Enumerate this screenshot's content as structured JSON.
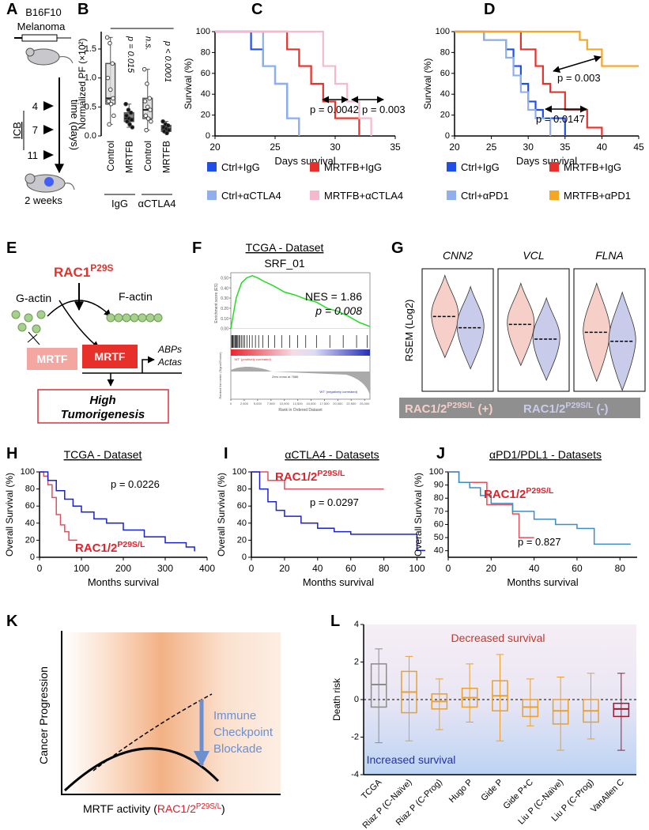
{
  "panels": {
    "A": {
      "label": "A",
      "lines": [
        "B16F10",
        "Melanoma"
      ],
      "timeline": [
        4,
        7,
        11
      ],
      "treatment": "ICB",
      "axis": "time (days)",
      "endpoint": "2 weeks"
    },
    "E": {
      "label": "E",
      "driver": "RAC1",
      "driver_sup": "P29S",
      "g_actin": "G-actin",
      "f_actin": "F-actin",
      "mrtf_inactive": "MRTF",
      "mrtf_active": "MRTF",
      "targets": [
        "ABPs",
        "Actas"
      ],
      "outcome": [
        "High",
        "Tumorigenesis"
      ]
    },
    "K": {
      "label": "K",
      "y_label": "Cancer Progression",
      "x_label": "MRTF activity (",
      "x_label_gene": "RAC1/2",
      "x_label_sup": "P29S/L",
      "x_label_end": ")",
      "treatment": [
        "Immune",
        "Checkpoint",
        "Blockade"
      ]
    }
  },
  "chart_data": [
    {
      "type": "box",
      "label": "B",
      "y_label": "Normalized PF (×10²)",
      "categories": [
        "Control",
        "MRTFB",
        "Control",
        "MRTFB"
      ],
      "groups": [
        "IgG",
        "αCTLA4"
      ],
      "colors": [
        "#d9d9d9",
        "#6b6b6b",
        "#d9d9d9",
        "#6b6b6b"
      ],
      "stats": [
        {
          "min": 0.2,
          "q1": 0.55,
          "median": 0.65,
          "q3": 1.25,
          "max": 1.7
        },
        {
          "min": 0.15,
          "q1": 0.25,
          "median": 0.3,
          "q3": 0.4,
          "max": 0.55
        },
        {
          "min": 0.1,
          "q1": 0.3,
          "median": 0.45,
          "q3": 0.65,
          "max": 1.15
        },
        {
          "min": 0.05,
          "q1": 0.08,
          "median": 0.12,
          "q3": 0.18,
          "max": 0.25
        }
      ],
      "points": [
        [
          1.7,
          1.6,
          1.25,
          1.0,
          0.8,
          0.65,
          0.6,
          0.55,
          0.35,
          0.2
        ],
        [
          0.55,
          0.45,
          0.4,
          0.35,
          0.3,
          0.28,
          0.25,
          0.2,
          0.15
        ],
        [
          1.15,
          0.9,
          0.65,
          0.6,
          0.5,
          0.45,
          0.35,
          0.3,
          0.25,
          0.1
        ],
        [
          0.25,
          0.2,
          0.18,
          0.15,
          0.12,
          0.1,
          0.08,
          0.05
        ]
      ],
      "ylim": [
        0,
        1.8
      ],
      "yticks": [
        {
          "value": 0,
          "label": "0.0"
        },
        0.5,
        {
          "value": 1,
          "label": "1.0"
        },
        1.5
      ],
      "annotations": [
        "p = 0.015",
        "n.s.",
        "p < 0.0001"
      ]
    },
    {
      "type": "km",
      "label": "C",
      "x_label": "Days survival",
      "y_label": "Survival (%)",
      "xlim": [
        20,
        35
      ],
      "xticks": [
        20,
        25,
        30,
        35
      ],
      "ylim": [
        0,
        100
      ],
      "yticks": [
        0,
        20,
        40,
        60,
        80,
        100
      ],
      "series": [
        {
          "name": "Ctrl+IgG",
          "color": "#1f4fe8",
          "x": [
            20,
            23,
            24,
            25,
            26,
            27
          ],
          "values": [
            100,
            83,
            67,
            50,
            17,
            0
          ]
        },
        {
          "name": "MRTFB+IgG",
          "color": "#e8302a",
          "x": [
            20,
            26,
            27,
            28,
            29,
            30,
            32
          ],
          "values": [
            100,
            83,
            67,
            50,
            33,
            17,
            0
          ]
        },
        {
          "name": "Ctrl+αCTLA4",
          "color": "#8fb0ea",
          "x": [
            20,
            24,
            25,
            26,
            27
          ],
          "values": [
            100,
            67,
            50,
            17,
            0
          ]
        },
        {
          "name": "MRTFB+αCTLA4",
          "color": "#f4b8cf",
          "x": [
            20,
            29,
            30,
            31,
            32,
            33
          ],
          "values": [
            100,
            67,
            50,
            33,
            17,
            0
          ]
        }
      ],
      "annotations": [
        "p = 0.0042",
        "p = 0.003"
      ]
    },
    {
      "type": "km",
      "label": "D",
      "x_label": "Days survival",
      "y_label": "Survival (%)",
      "xlim": [
        20,
        45
      ],
      "xticks": [
        20,
        25,
        30,
        35,
        40,
        45
      ],
      "ylim": [
        0,
        100
      ],
      "yticks": [
        0,
        20,
        40,
        60,
        80,
        100
      ],
      "series": [
        {
          "name": "Ctrl+IgG",
          "color": "#1f4fe8",
          "x": [
            20,
            24,
            27,
            28,
            29,
            30,
            31,
            32,
            35
          ],
          "values": [
            100,
            92,
            83,
            67,
            50,
            33,
            25,
            17,
            0
          ]
        },
        {
          "name": "MRTFB+IgG",
          "color": "#e8302a",
          "x": [
            20,
            29,
            31,
            32,
            33,
            35,
            38,
            40
          ],
          "values": [
            100,
            83,
            67,
            50,
            42,
            25,
            8,
            0
          ]
        },
        {
          "name": "Ctrl+αPD1",
          "color": "#8fb0ea",
          "x": [
            20,
            24,
            27,
            28,
            29,
            30,
            31,
            33
          ],
          "values": [
            100,
            92,
            75,
            58,
            42,
            25,
            17,
            0
          ]
        },
        {
          "name": "MRTFB+αPD1",
          "color": "#f5a623",
          "x": [
            20,
            37,
            38,
            40,
            45
          ],
          "values": [
            100,
            92,
            83,
            67,
            67
          ]
        }
      ],
      "annotations": [
        "p = 0.003",
        "p = 0.0147"
      ]
    },
    {
      "type": "gsea",
      "label": "F",
      "title": "TCGA - Dataset",
      "subtitle": "SRF_01",
      "annotations": [
        "NES = 1.86",
        "p = 0.008"
      ],
      "y_label": "Enrichment score (ES)",
      "y2_label": "Ranked list metric (Signal2Noise)",
      "x_label": "Rank in Ordered Dataset",
      "positive_label": "'WT' (positively correlated)",
      "negative_label": "'WT' (negatively correlated)",
      "zero_cross": "Zero cross at 7686",
      "color": "#22dd22",
      "x": [
        0,
        1000,
        2000,
        3000,
        4000,
        5000,
        6000,
        8000,
        10000,
        12000,
        14000,
        16000,
        18000,
        20000,
        22000,
        24000,
        26000
      ],
      "values": [
        0,
        0.3,
        0.45,
        0.5,
        0.52,
        0.5,
        0.47,
        0.42,
        0.36,
        0.33,
        0.29,
        0.26,
        0.2,
        0.17,
        0.12,
        0.06,
        0.02
      ],
      "hits": [
        150,
        300,
        420,
        600,
        800,
        950,
        1100,
        1300,
        1500,
        1700,
        2000,
        2300,
        2600,
        3000,
        3500,
        4000,
        4600,
        5200,
        6000,
        7000,
        8200,
        9500,
        11000,
        12500,
        14000,
        16000,
        18500,
        21000,
        23500,
        25500
      ],
      "xlim": [
        0,
        26000
      ],
      "xticks": [
        0,
        {
          "value": 2500,
          "label": "2,500"
        },
        {
          "value": 5000,
          "label": "5,000"
        },
        {
          "value": 7500,
          "label": "7,500"
        },
        {
          "value": 10000,
          "label": "10,000"
        },
        {
          "value": 12500,
          "label": "12,500"
        },
        {
          "value": 15000,
          "label": "15,000"
        },
        {
          "value": 17500,
          "label": "17,500"
        },
        {
          "value": 20000,
          "label": "20,000"
        },
        {
          "value": 22500,
          "label": "22,500"
        },
        {
          "value": 25000,
          "label": "25,000"
        }
      ],
      "ylim": [
        -0.05,
        0.55
      ],
      "yticks": [
        {
          "value": 0,
          "label": "0.00"
        },
        {
          "value": 0.1,
          "label": "0.10"
        },
        {
          "value": 0.2,
          "label": "0.20"
        },
        {
          "value": 0.3,
          "label": "0.30"
        },
        {
          "value": 0.4,
          "label": "0.40"
        },
        {
          "value": 0.5,
          "label": "0.50"
        }
      ]
    },
    {
      "type": "violin",
      "label": "G",
      "y_label": "RSEM (Log2)",
      "categories": [
        "CNN2",
        "VCL",
        "FLNA"
      ],
      "ylim": [
        0,
        1
      ],
      "series": [
        {
          "name": "RAC1/2",
          "name_sup": "P29S/L",
          "name_suffix": " (+)",
          "color": "#f7cfc9",
          "values": [
            0.62,
            0.55,
            0.48
          ]
        },
        {
          "name": "RAC1/2",
          "name_sup": "P29S/L",
          "name_suffix": " (-)",
          "color": "#c9cbea",
          "values": [
            0.52,
            0.42,
            0.4
          ]
        }
      ]
    },
    {
      "type": "km",
      "label": "H",
      "title": "TCGA - Dataset",
      "x_label": "Months survival",
      "y_label": "Overall Survival (%)",
      "xlim": [
        0,
        400
      ],
      "xticks": [
        0,
        100,
        200,
        300,
        400
      ],
      "ylim": [
        0,
        100
      ],
      "yticks": [
        0,
        20,
        40,
        60,
        80,
        100
      ],
      "series": [
        {
          "name": "RAC1/2",
          "name_sup": "P29S/L",
          "color": "#e0505a",
          "x": [
            0,
            10,
            20,
            30,
            40,
            50,
            60,
            70,
            90
          ],
          "values": [
            100,
            95,
            85,
            70,
            50,
            38,
            30,
            20,
            20
          ]
        },
        {
          "color": "#1a22d0",
          "x": [
            0,
            20,
            40,
            60,
            80,
            100,
            130,
            160,
            200,
            250,
            300,
            350,
            370
          ],
          "values": [
            100,
            90,
            78,
            68,
            60,
            53,
            45,
            40,
            32,
            24,
            17,
            12,
            7
          ]
        }
      ],
      "annotations": [
        "p = 0.0226"
      ]
    },
    {
      "type": "km",
      "label": "I",
      "title": "αCTLA4 - Datasets",
      "x_label": "Months survival",
      "y_label": "Overall Survival (%)",
      "xlim": [
        0,
        105
      ],
      "xticks": [
        0,
        20,
        40,
        60,
        80,
        100
      ],
      "ylim": [
        0,
        100
      ],
      "yticks": [
        0,
        20,
        40,
        60,
        80,
        100
      ],
      "series": [
        {
          "name": "RAC1/2",
          "name_sup": "P29S/L",
          "color": "#e0505a",
          "x": [
            0,
            10,
            20,
            40,
            60,
            80
          ],
          "values": [
            100,
            90,
            80,
            80,
            80,
            80
          ]
        },
        {
          "color": "#1a22d0",
          "x": [
            0,
            5,
            10,
            15,
            20,
            30,
            40,
            50,
            60,
            70,
            95,
            100,
            105
          ],
          "values": [
            100,
            80,
            65,
            55,
            48,
            40,
            34,
            30,
            27,
            27,
            27,
            8,
            8
          ]
        }
      ],
      "annotations": [
        "p = 0.0297"
      ]
    },
    {
      "type": "km",
      "label": "J",
      "title": "αPD1/PDL1 - Datasets",
      "x_label": "Months survival",
      "y_label": "Overall Survival (%)",
      "xlim": [
        0,
        88
      ],
      "xticks": [
        0,
        20,
        40,
        60,
        80
      ],
      "ylim": [
        35,
        100
      ],
      "yticks": [
        40,
        50,
        60,
        70,
        80,
        90,
        100
      ],
      "series": [
        {
          "name": "RAC1/2",
          "name_sup": "P29S/L",
          "color": "#e0505a",
          "x": [
            0,
            5,
            10,
            18,
            30,
            33,
            40
          ],
          "values": [
            100,
            92,
            92,
            75,
            68,
            50,
            50
          ]
        },
        {
          "color": "#3b8ec4",
          "x": [
            0,
            5,
            10,
            15,
            20,
            30,
            40,
            50,
            60,
            68,
            85
          ],
          "values": [
            100,
            92,
            88,
            82,
            76,
            70,
            64,
            60,
            57,
            45,
            45
          ]
        }
      ],
      "annotations": [
        "p = 0.827"
      ]
    },
    {
      "type": "box",
      "label": "L",
      "y_label": "Death risk",
      "categories": [
        "TCGA",
        "Riaz P (C-Naïve)",
        "Riaz P (C-Prog)",
        "Hugo P",
        "Gide P",
        "Gide P+C",
        "Liu P (C-Naïve)",
        "Liu P (C-Prog)",
        "VanAllen C"
      ],
      "colors": [
        "#8c8c8c",
        "#e8a030",
        "#e8a030",
        "#e8a030",
        "#e8a030",
        "#e8a030",
        "#e8a030",
        "#e8a030",
        "#9b1b30"
      ],
      "stats": [
        {
          "min": -2.3,
          "q1": -0.4,
          "median": 0.8,
          "q3": 1.9,
          "max": 2.7
        },
        {
          "min": -2.2,
          "q1": -0.7,
          "median": 0.4,
          "q3": 1.5,
          "max": 2.3
        },
        {
          "min": -1.6,
          "q1": -0.5,
          "median": -0.1,
          "q3": 0.3,
          "max": 1.1
        },
        {
          "min": -1.2,
          "q1": -0.4,
          "median": 0.1,
          "q3": 0.6,
          "max": 1.9
        },
        {
          "min": -2.2,
          "q1": -0.6,
          "median": 0.2,
          "q3": 1.0,
          "max": 2.4
        },
        {
          "min": -1.4,
          "q1": -0.9,
          "median": -0.4,
          "q3": 0,
          "max": 1.1
        },
        {
          "min": -2.7,
          "q1": -1.3,
          "median": -0.6,
          "q3": 0,
          "max": 1.2
        },
        {
          "min": -2.1,
          "q1": -1.2,
          "median": -0.6,
          "q3": 0,
          "max": 1.4
        },
        {
          "min": -2.7,
          "q1": -0.9,
          "median": -0.5,
          "q3": -0.2,
          "max": 1.4
        }
      ],
      "ylim": [
        -4,
        4
      ],
      "yticks": [
        -4,
        -2,
        0,
        2,
        4
      ],
      "reference_line": 0,
      "annotations": [
        "Decreased survival",
        "Increased survival"
      ]
    }
  ]
}
